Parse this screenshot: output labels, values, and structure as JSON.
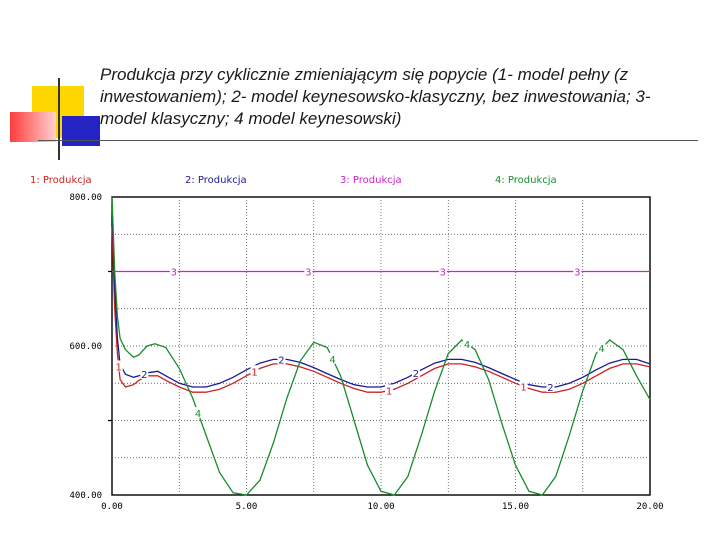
{
  "slide": {
    "title": "Produkcja przy cyklicznie zmieniającym się popycie (1- model pełny (z inwestowaniem); 2- model keynesowsko-klasyczny, bez inwestowania; 3- model klasyczny; 4 model keynesowski)",
    "accent_colors": {
      "yellow": "#ffd700",
      "red": "#ff4040",
      "blue": "#2020c0",
      "pink": "#ffb0b0"
    }
  },
  "chart_data": {
    "type": "line",
    "xlim": [
      0,
      20
    ],
    "ylim": [
      400,
      800
    ],
    "x_ticks": [
      "0.00",
      "5.00",
      "10.00",
      "15.00",
      "20.00"
    ],
    "y_ticks": [
      "400.00",
      "600.00",
      "800.00"
    ],
    "grid": true,
    "legend_position": "top",
    "series": [
      {
        "name": "1: Produkcja",
        "marker": "1",
        "color": "#cc2222",
        "x": [
          0,
          0.1,
          0.2,
          0.3,
          0.5,
          0.8,
          1.0,
          1.3,
          1.7,
          2.0,
          2.5,
          3.0,
          3.5,
          4.0,
          4.5,
          5.0,
          5.5,
          6.0,
          6.5,
          7.0,
          7.5,
          8.0,
          8.5,
          9.0,
          9.5,
          10.0,
          10.5,
          11.0,
          11.5,
          12.0,
          12.5,
          13.0,
          13.5,
          14.0,
          14.5,
          15.0,
          15.5,
          16.0,
          16.5,
          17.0,
          17.5,
          18.0,
          18.5,
          19.0,
          19.5,
          20.0
        ],
        "y": [
          760,
          650,
          590,
          555,
          545,
          548,
          554,
          560,
          560,
          554,
          545,
          538,
          538,
          542,
          550,
          560,
          570,
          576,
          576,
          572,
          566,
          558,
          550,
          543,
          538,
          538,
          542,
          550,
          560,
          570,
          576,
          576,
          572,
          566,
          558,
          550,
          543,
          538,
          538,
          542,
          550,
          560,
          570,
          576,
          576,
          572
        ]
      },
      {
        "name": "2: Produkcja",
        "marker": "2",
        "color": "#1a1a99",
        "x": [
          0,
          0.1,
          0.2,
          0.3,
          0.5,
          0.8,
          1.0,
          1.3,
          1.7,
          2.0,
          2.5,
          3.0,
          3.5,
          4.0,
          4.5,
          5.0,
          5.5,
          6.0,
          6.5,
          7.0,
          7.5,
          8.0,
          8.5,
          9.0,
          9.5,
          10.0,
          10.5,
          11.0,
          11.5,
          12.0,
          12.5,
          13.0,
          13.5,
          14.0,
          14.5,
          15.0,
          15.5,
          16.0,
          16.5,
          17.0,
          17.5,
          18.0,
          18.5,
          19.0,
          19.5,
          20.0
        ],
        "y": [
          790,
          680,
          610,
          575,
          562,
          558,
          560,
          564,
          566,
          560,
          550,
          545,
          545,
          550,
          558,
          568,
          577,
          582,
          582,
          578,
          571,
          563,
          555,
          548,
          545,
          545,
          550,
          558,
          568,
          577,
          582,
          582,
          578,
          571,
          563,
          555,
          548,
          545,
          545,
          550,
          558,
          568,
          577,
          582,
          582,
          576
        ]
      },
      {
        "name": "3: Produkcja",
        "marker": "3",
        "color": "#cc22cc",
        "x": [
          0,
          20
        ],
        "y": [
          700,
          700
        ]
      },
      {
        "name": "4: Produkcja",
        "marker": "4",
        "color": "#1a8c2e",
        "x": [
          0,
          0.1,
          0.2,
          0.3,
          0.5,
          0.8,
          1.0,
          1.3,
          1.6,
          2.0,
          2.5,
          3.0,
          3.5,
          4.0,
          4.5,
          5.0,
          5.5,
          6.0,
          6.5,
          7.0,
          7.5,
          8.0,
          8.5,
          9.0,
          9.5,
          10.0,
          10.5,
          11.0,
          11.5,
          12.0,
          12.5,
          13.0,
          13.5,
          14.0,
          14.5,
          15.0,
          15.5,
          16.0,
          16.5,
          17.0,
          17.5,
          18.0,
          18.5,
          19.0,
          19.5,
          20.0
        ],
        "y": [
          800,
          700,
          640,
          610,
          595,
          585,
          588,
          600,
          603,
          598,
          570,
          530,
          480,
          430,
          403,
          400,
          420,
          470,
          530,
          580,
          605,
          598,
          560,
          500,
          440,
          405,
          400,
          425,
          480,
          540,
          590,
          608,
          595,
          555,
          495,
          440,
          405,
          400,
          425,
          480,
          540,
          590,
          608,
          595,
          560,
          528
        ]
      }
    ],
    "markers": [
      {
        "series": "1",
        "x": 0.25
      },
      {
        "series": "1",
        "x": 5.3
      },
      {
        "series": "1",
        "x": 10.3
      },
      {
        "series": "1",
        "x": 15.3
      },
      {
        "series": "2",
        "x": 1.2
      },
      {
        "series": "2",
        "x": 6.3
      },
      {
        "series": "2",
        "x": 11.3
      },
      {
        "series": "2",
        "x": 16.3
      },
      {
        "series": "3",
        "x": 2.3
      },
      {
        "series": "3",
        "x": 7.3
      },
      {
        "series": "3",
        "x": 12.3
      },
      {
        "series": "3",
        "x": 17.3
      },
      {
        "series": "4",
        "x": 3.2
      },
      {
        "series": "4",
        "x": 8.2
      },
      {
        "series": "4",
        "x": 13.2
      },
      {
        "series": "4",
        "x": 18.2
      }
    ]
  }
}
